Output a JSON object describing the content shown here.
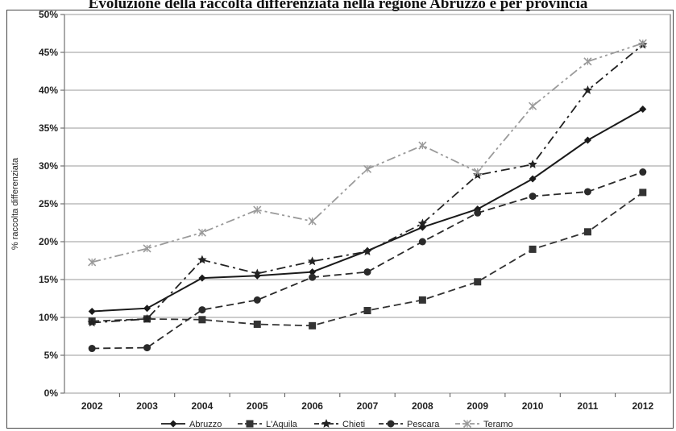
{
  "chart_data": {
    "type": "line",
    "title": "Evoluzione della raccolta differenziata nella regione Abruzzo e per provincia",
    "ylabel": "% raccolta differenziata",
    "xlabel": "",
    "ylim": [
      0,
      50
    ],
    "y_tick_labels": [
      "0%",
      "5%",
      "10%",
      "15%",
      "20%",
      "25%",
      "30%",
      "35%",
      "40%",
      "45%",
      "50%"
    ],
    "categories": [
      "2002",
      "2003",
      "2004",
      "2005",
      "2006",
      "2007",
      "2008",
      "2009",
      "2010",
      "2011",
      "2012"
    ],
    "grid": "horizontal",
    "legend_position": "bottom",
    "series": [
      {
        "name": "Abruzzo",
        "color": "#1a1a1a",
        "dash": "solid",
        "marker": "diamond",
        "values": [
          10.8,
          11.2,
          15.2,
          15.5,
          16.0,
          18.8,
          21.9,
          24.3,
          28.3,
          33.4,
          37.5
        ]
      },
      {
        "name": "L'Aquila",
        "color": "#333333",
        "dash": "dashed",
        "marker": "square",
        "values": [
          9.5,
          9.8,
          9.7,
          9.1,
          8.9,
          10.9,
          12.3,
          14.7,
          19.0,
          21.3,
          26.5
        ]
      },
      {
        "name": "Chieti",
        "color": "#222222",
        "dash": "dashdot",
        "marker": "star",
        "values": [
          9.3,
          9.8,
          17.6,
          15.8,
          17.4,
          18.7,
          22.4,
          28.8,
          30.2,
          40.0,
          46.0
        ]
      },
      {
        "name": "Pescara",
        "color": "#2a2a2a",
        "dash": "dashed",
        "marker": "circle",
        "values": [
          5.9,
          6.0,
          11.0,
          12.3,
          15.3,
          16.0,
          20.0,
          23.8,
          26.0,
          26.6,
          29.2
        ]
      },
      {
        "name": "Teramo",
        "color": "#9a9a9a",
        "dash": "dashdotdot",
        "marker": "x",
        "values": [
          17.3,
          19.1,
          21.2,
          24.2,
          22.7,
          29.6,
          32.7,
          29.2,
          37.9,
          43.8,
          46.2
        ]
      }
    ]
  }
}
